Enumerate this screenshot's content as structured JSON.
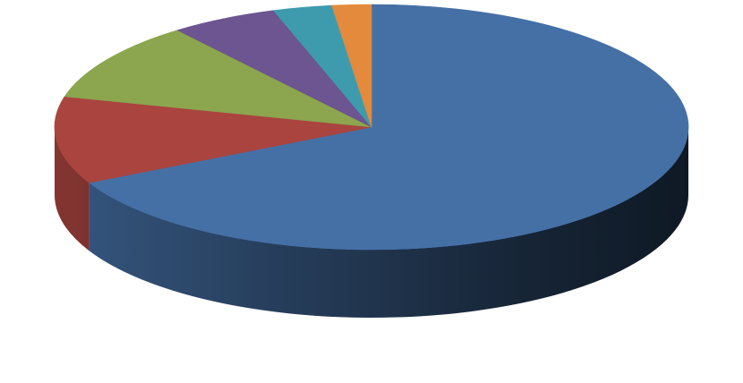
{
  "chart_data": {
    "type": "pie",
    "style": "3d",
    "title": "",
    "legend": "none",
    "data_labels": "none",
    "slices": [
      {
        "value": 67.5,
        "color": "#4570A6"
      },
      {
        "value": 11.5,
        "color": "#A9443F"
      },
      {
        "value": 10.5,
        "color": "#8BA64E"
      },
      {
        "value": 5.5,
        "color": "#6C5590"
      },
      {
        "value": 3.0,
        "color": "#3E9BAE"
      },
      {
        "value": 2.0,
        "color": "#E48A3C"
      }
    ]
  }
}
